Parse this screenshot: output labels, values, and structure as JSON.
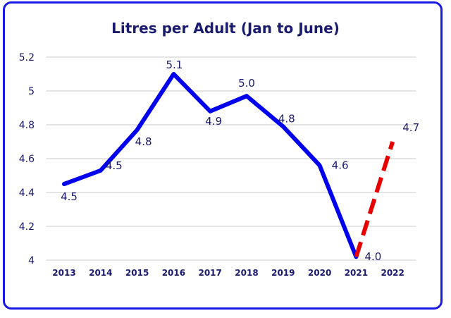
{
  "chart_data": {
    "type": "line",
    "title": "Litres per Adult (Jan to June)",
    "xlabel": "",
    "ylabel": "",
    "categories": [
      "2013",
      "2014",
      "2015",
      "2016",
      "2017",
      "2018",
      "2019",
      "2020",
      "2021",
      "2022"
    ],
    "ylim": [
      4,
      5.2
    ],
    "yticks": [
      "4",
      "4.2",
      "4.4",
      "4.6",
      "4.8",
      "5",
      "5.2"
    ],
    "grid": true,
    "legend": "none",
    "series": [
      {
        "values": [
          4.45,
          4.53,
          4.77,
          5.1,
          4.88,
          4.97,
          4.79,
          4.56,
          4.02,
          null
        ],
        "labels": [
          "4.5",
          "4.5",
          "4.8",
          "5.1",
          "4.9",
          "5.0",
          "4.8",
          "4.6",
          "4.0",
          ""
        ],
        "color": "#0000ee",
        "style": "solid"
      },
      {
        "values": [
          null,
          null,
          null,
          null,
          null,
          null,
          null,
          null,
          4.02,
          4.7
        ],
        "labels": [
          "",
          "",
          "",
          "",
          "",
          "",
          "",
          "",
          "",
          "4.7"
        ],
        "color": "#e60000",
        "style": "dashed"
      }
    ]
  },
  "colors": {
    "frame": "#1a1ae6",
    "text": "#1a1a6e",
    "grid": "#c8c8c8"
  }
}
